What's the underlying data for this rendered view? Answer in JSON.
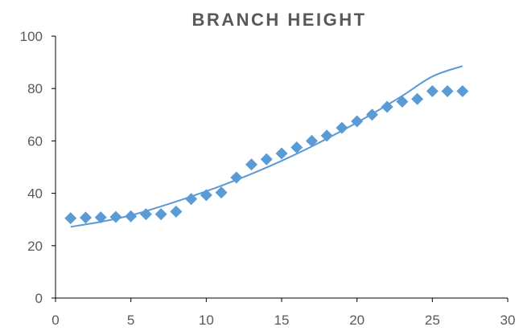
{
  "chart_data": {
    "type": "scatter",
    "title": "BRANCH HEIGHT",
    "xlabel": "",
    "ylabel": "",
    "xlim": [
      0,
      30
    ],
    "ylim": [
      0,
      100
    ],
    "x_ticks": [
      0,
      5,
      10,
      15,
      20,
      25,
      30
    ],
    "y_ticks": [
      0,
      20,
      40,
      60,
      80,
      100
    ],
    "grid": false,
    "legend": "none",
    "marker": "diamond",
    "series": [
      {
        "color": "#5b9bd5",
        "x": [
          1,
          2,
          3,
          4,
          5,
          6,
          7,
          8,
          9,
          10,
          11,
          12,
          13,
          14,
          15,
          16,
          17,
          18,
          19,
          20,
          21,
          22,
          23,
          24,
          25,
          26,
          27
        ],
        "y": [
          30.5,
          30.7,
          30.8,
          31,
          31.2,
          32,
          32,
          33,
          37.8,
          39.3,
          40.3,
          46,
          51,
          53,
          55.2,
          57.5,
          60,
          62,
          65,
          67.5,
          70,
          73,
          75,
          76,
          79,
          79,
          79
        ]
      }
    ],
    "trendline": {
      "type": "polynomial",
      "color": "#5b9bd5",
      "x": [
        1,
        3,
        5,
        7,
        9,
        11,
        13,
        15,
        17,
        19,
        21,
        23,
        25,
        27
      ],
      "y": [
        27.2,
        29.1,
        31.6,
        35,
        38.8,
        42.9,
        47.4,
        52.4,
        57.9,
        63.9,
        70.3,
        77.2,
        84.6,
        88.6
      ]
    }
  }
}
